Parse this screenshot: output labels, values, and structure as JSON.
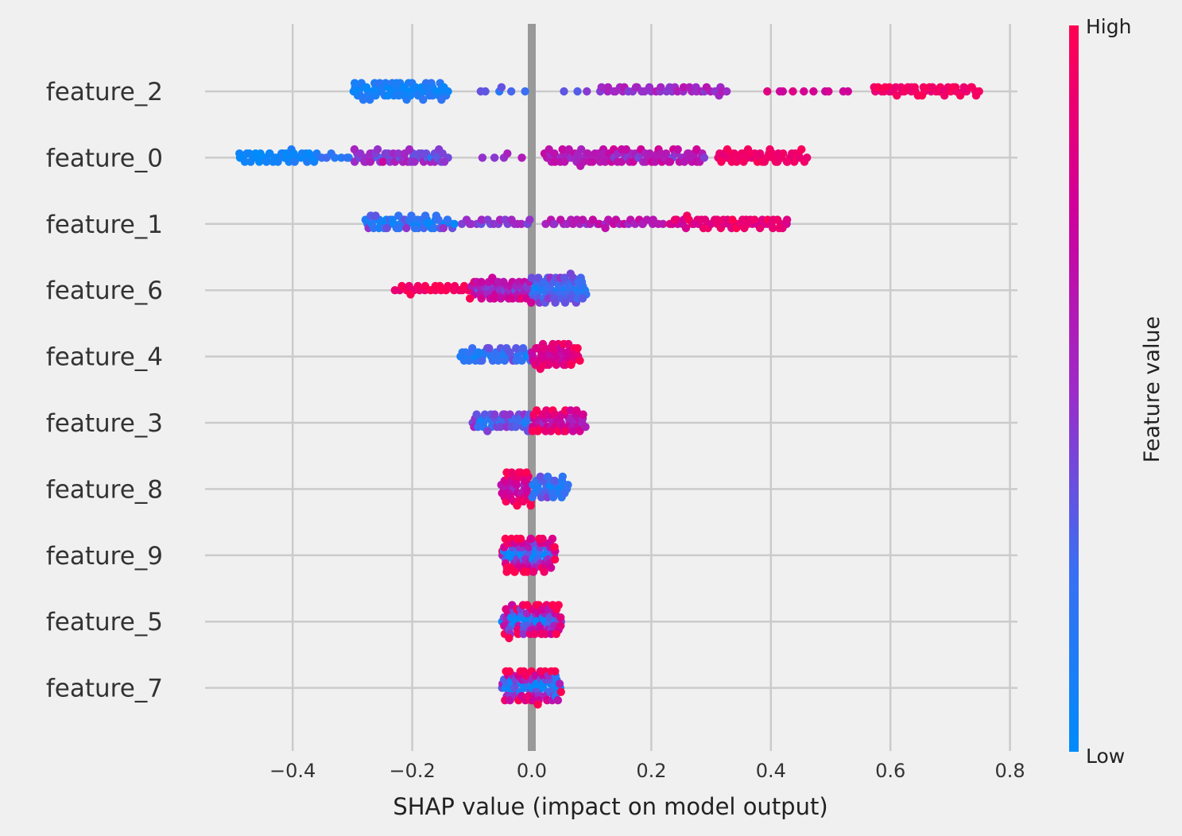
{
  "chart_data": {
    "type": "scatter",
    "subtype": "shap-beeswarm-summary",
    "title": "",
    "xlabel": "SHAP value (impact on model output)",
    "ylabel": "",
    "xlim": [
      -0.55,
      0.82
    ],
    "xticks": [
      {
        "value": -0.4,
        "label": "−0.4"
      },
      {
        "value": -0.2,
        "label": "−0.2"
      },
      {
        "value": 0.0,
        "label": "0.0"
      },
      {
        "value": 0.2,
        "label": "0.2"
      },
      {
        "value": 0.4,
        "label": "0.4"
      },
      {
        "value": 0.6,
        "label": "0.6"
      },
      {
        "value": 0.8,
        "label": "0.8"
      }
    ],
    "grid": true,
    "colorbar": {
      "title": "Feature value",
      "high_label": "High",
      "low_label": "Low",
      "low_color": "#008bfb",
      "mid_color": "#9d2bc8",
      "high_color": "#ff0052"
    },
    "features": [
      {
        "name": "feature_2",
        "groups": [
          {
            "lo": -0.3,
            "hi": -0.14,
            "n": 70,
            "v": 0.1,
            "jit": 0.06
          },
          {
            "lo": -0.1,
            "hi": -0.01,
            "n": 6,
            "v": 0.28,
            "jit": 0.05
          },
          {
            "lo": 0.04,
            "hi": 0.1,
            "n": 3,
            "v": 0.35,
            "jit": 0.05
          },
          {
            "lo": 0.11,
            "hi": 0.33,
            "n": 40,
            "v": 0.52,
            "jit": 0.06
          },
          {
            "lo": 0.39,
            "hi": 0.54,
            "n": 10,
            "v": 0.75,
            "jit": 0.05
          },
          {
            "lo": 0.57,
            "hi": 0.75,
            "n": 45,
            "v": 0.93,
            "jit": 0.04
          }
        ]
      },
      {
        "name": "feature_0",
        "groups": [
          {
            "lo": -0.49,
            "hi": -0.36,
            "n": 40,
            "v": 0.04,
            "jit": 0.04
          },
          {
            "lo": -0.36,
            "hi": -0.3,
            "n": 8,
            "v": 0.2,
            "jit": 0.06
          },
          {
            "lo": -0.3,
            "hi": -0.14,
            "n": 55,
            "v": 0.44,
            "jit": 0.1
          },
          {
            "lo": -0.09,
            "hi": -0.01,
            "n": 5,
            "v": 0.5,
            "jit": 0.05
          },
          {
            "lo": 0.02,
            "hi": 0.29,
            "n": 100,
            "v": 0.58,
            "jit": 0.08
          },
          {
            "lo": 0.31,
            "hi": 0.46,
            "n": 50,
            "v": 0.92,
            "jit": 0.05
          }
        ]
      },
      {
        "name": "feature_1",
        "groups": [
          {
            "lo": -0.28,
            "hi": -0.13,
            "n": 55,
            "v": 0.18,
            "jit": 0.12
          },
          {
            "lo": -0.12,
            "hi": 0.0,
            "n": 20,
            "v": 0.45,
            "jit": 0.06
          },
          {
            "lo": 0.02,
            "hi": 0.22,
            "n": 35,
            "v": 0.6,
            "jit": 0.07
          },
          {
            "lo": 0.23,
            "hi": 0.43,
            "n": 55,
            "v": 0.86,
            "jit": 0.07
          }
        ]
      },
      {
        "name": "feature_6",
        "groups": [
          {
            "lo": -0.23,
            "hi": -0.1,
            "n": 25,
            "v": 0.95,
            "jit": 0.04
          },
          {
            "lo": -0.1,
            "hi": 0.0,
            "n": 55,
            "v": 0.62,
            "jit": 0.16
          },
          {
            "lo": 0.0,
            "hi": 0.09,
            "n": 65,
            "v": 0.28,
            "jit": 0.12
          }
        ]
      },
      {
        "name": "feature_4",
        "groups": [
          {
            "lo": -0.12,
            "hi": 0.0,
            "n": 45,
            "v": 0.18,
            "jit": 0.1
          },
          {
            "lo": 0.0,
            "hi": 0.08,
            "n": 50,
            "v": 0.82,
            "jit": 0.1
          }
        ]
      },
      {
        "name": "feature_3",
        "groups": [
          {
            "lo": -0.1,
            "hi": 0.0,
            "n": 45,
            "v": 0.3,
            "jit": 0.12
          },
          {
            "lo": 0.0,
            "hi": 0.09,
            "n": 55,
            "v": 0.72,
            "jit": 0.15
          }
        ]
      },
      {
        "name": "feature_8",
        "groups": [
          {
            "lo": -0.05,
            "hi": 0.0,
            "n": 45,
            "v": 0.8,
            "jit": 0.15
          },
          {
            "lo": 0.0,
            "hi": 0.06,
            "n": 35,
            "v": 0.2,
            "jit": 0.12
          }
        ]
      },
      {
        "name": "feature_9",
        "groups": [
          {
            "lo": -0.05,
            "hi": 0.04,
            "n": 85,
            "v": 0.55,
            "jit": 0.42
          }
        ]
      },
      {
        "name": "feature_5",
        "groups": [
          {
            "lo": -0.05,
            "hi": 0.05,
            "n": 85,
            "v": 0.55,
            "jit": 0.42
          }
        ]
      },
      {
        "name": "feature_7",
        "groups": [
          {
            "lo": -0.05,
            "hi": 0.05,
            "n": 85,
            "v": 0.5,
            "jit": 0.42
          }
        ]
      }
    ]
  }
}
